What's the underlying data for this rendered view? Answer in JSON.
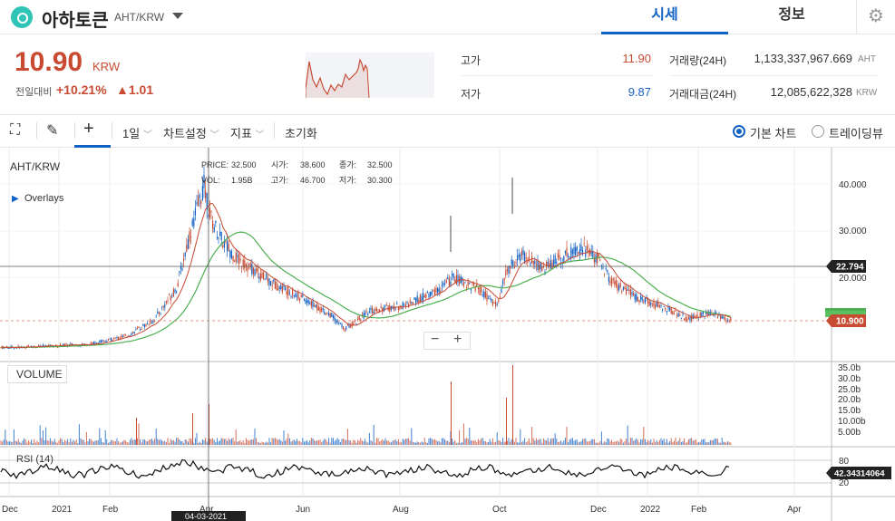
{
  "header": {
    "coin_name": "아하토큰",
    "pair": "AHT/KRW",
    "tabs": [
      {
        "label": "시세"
      },
      {
        "label": "정보"
      }
    ]
  },
  "summary": {
    "price": "10.90",
    "price_unit": "KRW",
    "prev_label": "전일대비",
    "change_pct": "+10.21%",
    "change_abs": "▲1.01",
    "high_label": "고가",
    "high_value": "11.90",
    "low_label": "저가",
    "low_value": "9.87",
    "volume_label": "거래량(24H)",
    "volume_value": "1,133,337,967.669",
    "volume_unit": "AHT",
    "amount_label": "거래대금(24H)",
    "amount_value": "12,085,622,328",
    "amount_unit": "KRW"
  },
  "toolbar": {
    "interval": "1일",
    "chart_settings": "차트설정",
    "indicators": "지표",
    "reset": "초기화",
    "basic_chart": "기본 차트",
    "trading_view": "트레이딩뷰"
  },
  "chart": {
    "symbol": "AHT/KRW",
    "overlays": "Overlays",
    "ohlc": {
      "price_label": "PRICE:",
      "price": "32.500",
      "open_label": "시가:",
      "open": "38.600",
      "close_label": "종가:",
      "close": "32.500",
      "vol_label": "VOL:",
      "vol": "1.95B",
      "high_label": "고가:",
      "high": "46.700",
      "low_label": "저가:",
      "low": "30.300"
    },
    "price_ticks": [
      "40.000",
      "30.000",
      "20.000"
    ],
    "crosshair_price": "22.794",
    "last_price": "10.900",
    "volume_pane_label": "VOLUME",
    "volume_ticks": [
      "35.0b",
      "30.0b",
      "25.0b",
      "20.0b",
      "15.0b",
      "10.00b",
      "5.00b"
    ],
    "rsi_label": "RSI (14)",
    "rsi_ticks": [
      "80",
      "20"
    ],
    "rsi_value": "42.34314064",
    "x_ticks": [
      "Dec",
      "2021",
      "Feb",
      "Apr",
      "Jun",
      "Aug",
      "Oct",
      "Dec",
      "2022",
      "Feb",
      "Apr"
    ],
    "crosshair_date": "04-03-2021",
    "colors": {
      "up": "#c84a31",
      "down": "#1261c4",
      "ma_fast": "#c84a31",
      "ma_slow": "#4caf50"
    }
  }
}
